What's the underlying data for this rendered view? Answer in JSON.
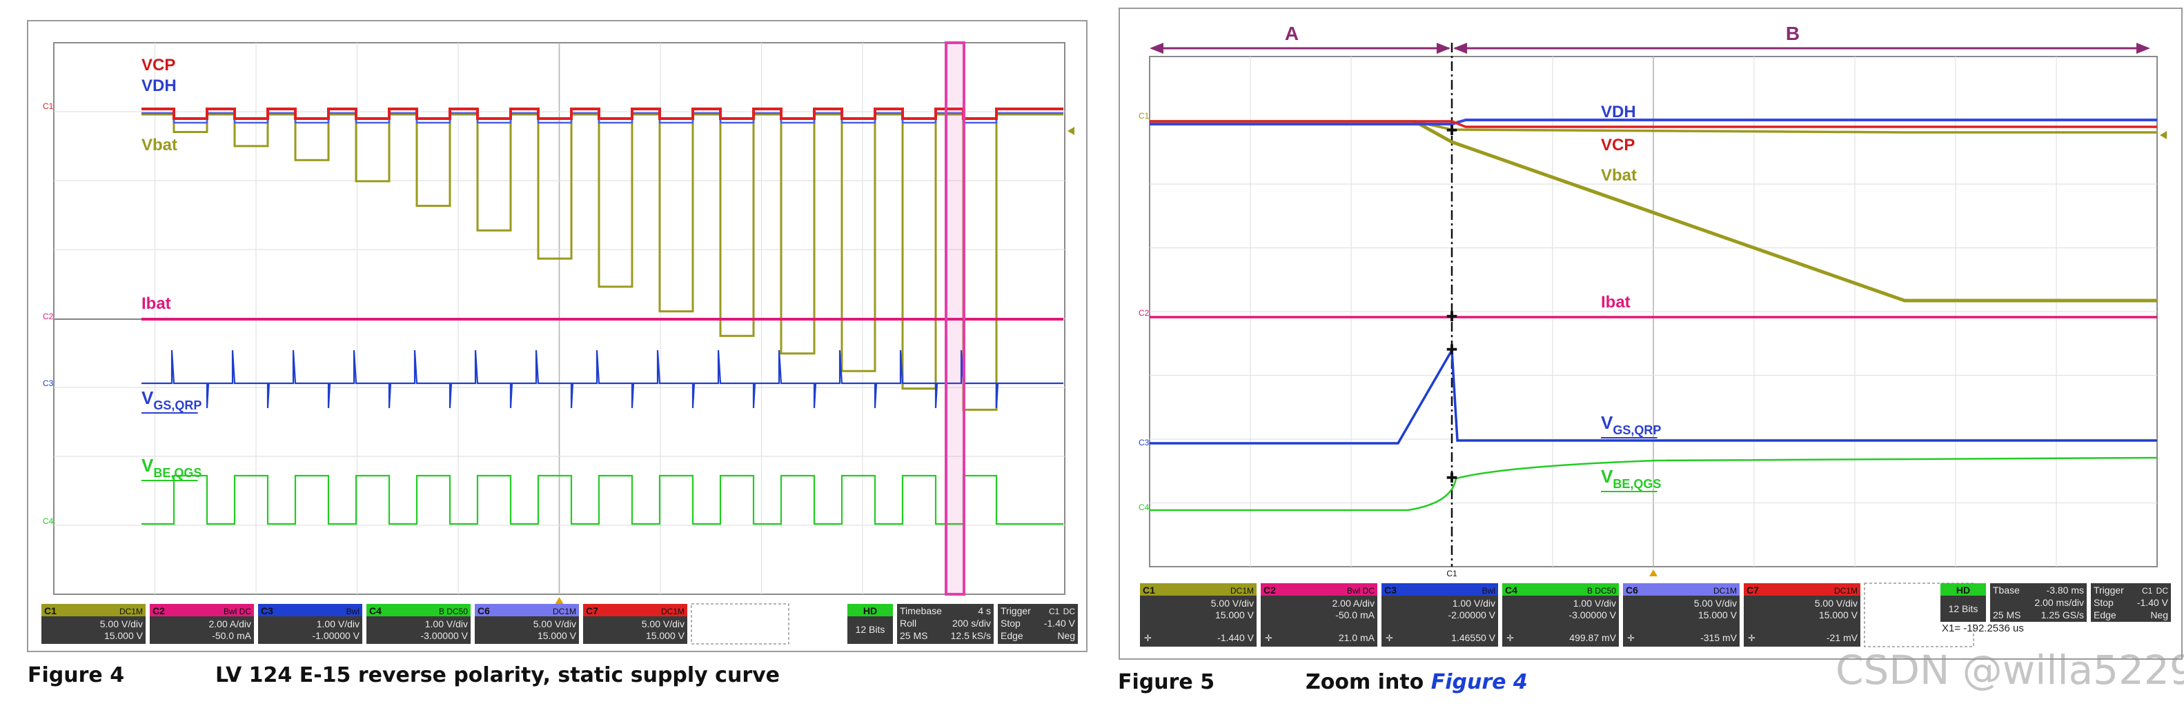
{
  "chart_data": [
    {
      "type": "line",
      "title": "LV 124 E-15 reverse polarity, static supply curve",
      "figure_label": "Figure 4",
      "signal_labels": [
        "VCP",
        "VDH",
        "Vbat",
        "Ibat",
        "VGS,QRP",
        "VBE,QGS"
      ],
      "channel_markers": [
        "C1",
        "C2",
        "C3",
        "C4"
      ],
      "timebase": {
        "label": "Timebase",
        "value": "4 s",
        "rate_label": "Roll",
        "rate": "200 s/div",
        "samples": "25 MS",
        "srate": "12.5 kS/s"
      },
      "trigger": {
        "label": "Trigger",
        "ch": "C1",
        "coupling": "DC",
        "mode": "Stop",
        "level": "-1.40 V",
        "type": "Edge",
        "slope": "Neg"
      },
      "hd": {
        "label": "HD",
        "bits": "12 Bits"
      },
      "channels": [
        {
          "name": "C1",
          "coupling": "DC1M",
          "vdiv": "5.00 V/div",
          "offset": "15.000 V",
          "color": "#9a9a1e"
        },
        {
          "name": "C2",
          "coupling": "Bwl DC",
          "vdiv": "2.00 A/div",
          "offset": "-50.0 mA",
          "color": "#e0187a"
        },
        {
          "name": "C3",
          "coupling": "Bwl",
          "vdiv": "1.00 V/div",
          "offset": "-1.00000 V",
          "color": "#1f3fd0"
        },
        {
          "name": "C4",
          "coupling": "B DC50",
          "vdiv": "1.00 V/div",
          "offset": "-3.00000 V",
          "color": "#22cc22"
        },
        {
          "name": "C6",
          "coupling": "DC1M",
          "vdiv": "5.00 V/div",
          "offset": "15.000 V",
          "color": "#7777ee"
        },
        {
          "name": "C7",
          "coupling": "DC1M",
          "vdiv": "5.00 V/div",
          "offset": "15.000 V",
          "color": "#e02020"
        }
      ],
      "series": [
        {
          "name": "VCP",
          "pulse_levels": [
            0
          ]
        },
        {
          "name": "VDH",
          "pulse_levels": [
            0
          ]
        },
        {
          "name": "Vbat",
          "pulse_levels": [
            -0.5,
            -0.9,
            -1.3,
            -1.9,
            -2.6,
            -3.3,
            -4.1,
            -4.9,
            -5.6,
            -6.3,
            -6.8,
            -7.3,
            -7.8,
            -8.4
          ]
        },
        {
          "name": "Ibat",
          "pulse_levels": [
            0
          ]
        },
        {
          "name": "VGS,QRP",
          "pulse_levels": [
            0
          ]
        },
        {
          "name": "VBE,QGS",
          "pulse_levels": [
            1
          ]
        }
      ],
      "grid": true,
      "x_divisions": 10,
      "y_divisions": 8
    },
    {
      "type": "line",
      "title": "Zoom into Figure 4",
      "figure_label": "Figure 5",
      "title_prefix": "Zoom into",
      "title_link": "Figure 4",
      "signal_labels": [
        "VDH",
        "VCP",
        "Vbat",
        "Ibat",
        "VGS,QRP",
        "VBE,QGS"
      ],
      "channel_markers": [
        "C1",
        "C2",
        "C3",
        "C4"
      ],
      "regions": [
        "A",
        "B"
      ],
      "timebase": {
        "label": "Tbase",
        "value": "-3.80 ms",
        "rate": "2.00 ms/div",
        "samples": "25 MS",
        "srate": "1.25 GS/s"
      },
      "trigger": {
        "label": "Trigger",
        "ch": "C1",
        "coupling": "DC",
        "mode": "Stop",
        "level": "-1.40 V",
        "type": "Edge",
        "slope": "Neg"
      },
      "hd": {
        "label": "HD",
        "bits": "12 Bits"
      },
      "cursor_readout": "X1=  -192.2536 us",
      "channels": [
        {
          "name": "C1",
          "coupling": "DC1M",
          "vdiv": "5.00 V/div",
          "offset": "15.000 V",
          "color": "#9a9a1e",
          "measure": "-1.440 V"
        },
        {
          "name": "C2",
          "coupling": "Bwl DC",
          "vdiv": "2.00 A/div",
          "offset": "-50.0 mA",
          "color": "#e0187a",
          "measure": "21.0 mA"
        },
        {
          "name": "C3",
          "coupling": "Bwl",
          "vdiv": "1.00 V/div",
          "offset": "-2.00000 V",
          "color": "#1f3fd0",
          "measure": "1.46550 V"
        },
        {
          "name": "C4",
          "coupling": "B DC50",
          "vdiv": "1.00 V/div",
          "offset": "-3.00000 V",
          "color": "#22cc22",
          "measure": "499.87 mV"
        },
        {
          "name": "C6",
          "coupling": "DC1M",
          "vdiv": "5.00 V/div",
          "offset": "15.000 V",
          "color": "#7777ee",
          "measure": "-315 mV"
        },
        {
          "name": "C7",
          "coupling": "DC1M",
          "vdiv": "5.00 V/div",
          "offset": "15.000 V",
          "color": "#e02020",
          "measure": "-21 mV"
        }
      ],
      "grid": true,
      "x_divisions": 10,
      "y_divisions": 8
    }
  ],
  "watermark": "CSDN @willa5229"
}
